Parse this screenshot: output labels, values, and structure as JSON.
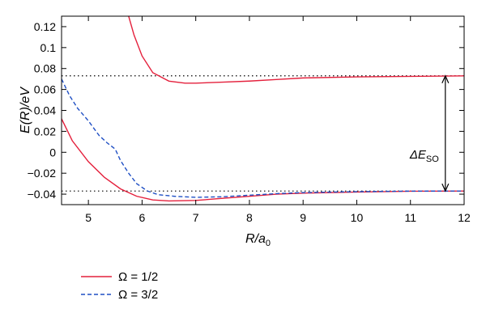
{
  "chart_data": {
    "type": "line",
    "title": "",
    "xlabel": "R/a",
    "xlabel_sub": "0",
    "ylabel": "E(R)/eV",
    "xlim": [
      4.5,
      12
    ],
    "ylim": [
      -0.05,
      0.13
    ],
    "xticks": [
      5,
      6,
      7,
      8,
      9,
      10,
      11,
      12
    ],
    "xtick_labels": [
      "5",
      "6",
      "7",
      "8",
      "9",
      "10",
      "11",
      "12"
    ],
    "yticks": [
      -0.04,
      -0.02,
      0,
      0.02,
      0.04,
      0.06,
      0.08,
      0.1,
      0.12
    ],
    "ytick_labels": [
      "−0.04",
      "−0.02",
      "0",
      "0.02",
      "0.04",
      "0.06",
      "0.08",
      "0.1",
      "0.12"
    ],
    "grid": false,
    "legend_placement": "below",
    "asymptotes": [
      0.073,
      -0.037
    ],
    "annotation": {
      "text_prefix": "ΔE",
      "text_sub": "SO",
      "x": 11.65,
      "y_from": -0.037,
      "y_to": 0.073
    },
    "series": [
      {
        "name": "Ω = 1/2",
        "style": "solid",
        "color": "#e4203c",
        "x": [
          5.75,
          5.85,
          6.0,
          6.2,
          6.5,
          6.8,
          7.0,
          7.5,
          8.0,
          8.5,
          9.0,
          10.0,
          11.0,
          12.0
        ],
        "y": [
          0.13,
          0.112,
          0.092,
          0.076,
          0.068,
          0.066,
          0.066,
          0.067,
          0.068,
          0.0695,
          0.071,
          0.072,
          0.0725,
          0.073
        ]
      },
      {
        "name": "",
        "style": "solid",
        "color": "#e4203c",
        "x": [
          4.5,
          4.7,
          5.0,
          5.3,
          5.6,
          5.9,
          6.2,
          6.5,
          7.0,
          7.5,
          8.0,
          8.5,
          9.0,
          10.0,
          11.0,
          12.0
        ],
        "y": [
          0.032,
          0.011,
          -0.009,
          -0.024,
          -0.035,
          -0.042,
          -0.0455,
          -0.0465,
          -0.046,
          -0.044,
          -0.042,
          -0.04,
          -0.039,
          -0.038,
          -0.0372,
          -0.037
        ]
      },
      {
        "name": "Ω = 3/2",
        "style": "dashed",
        "color": "#1f4fc4",
        "x": [
          4.5,
          4.65,
          4.8,
          5.0,
          5.2,
          5.35,
          5.5,
          5.6,
          5.75,
          5.9,
          6.1,
          6.3,
          6.6,
          7.0,
          7.5,
          8.0,
          8.5,
          9.0,
          10.0,
          11.0,
          12.0
        ],
        "y": [
          0.07,
          0.054,
          0.042,
          0.03,
          0.016,
          0.009,
          0.003,
          -0.008,
          -0.02,
          -0.03,
          -0.037,
          -0.0405,
          -0.042,
          -0.043,
          -0.0425,
          -0.041,
          -0.0395,
          -0.0385,
          -0.0376,
          -0.0371,
          -0.037
        ]
      }
    ]
  },
  "legend": [
    {
      "label": "Ω = 1/2",
      "style": "solid",
      "color": "#e4203c"
    },
    {
      "label": "Ω = 3/2",
      "style": "dashed",
      "color": "#1f4fc4"
    }
  ]
}
